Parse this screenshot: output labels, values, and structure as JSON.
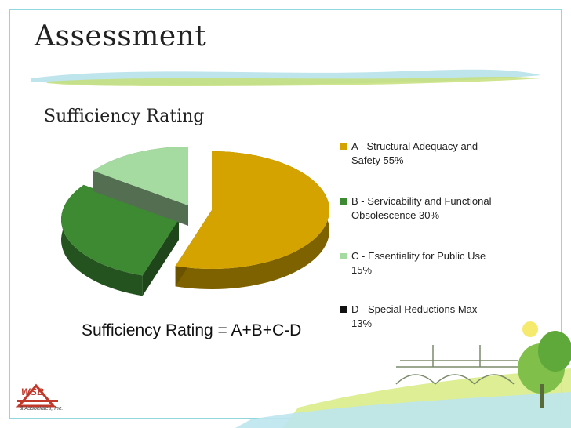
{
  "slide": {
    "title": "Assessment",
    "subtitle": "Sufficiency Rating",
    "formula": "Sufficiency Rating = A+B+C-D",
    "logo": {
      "text": "WSB",
      "tagline": "& Associates, Inc."
    }
  },
  "chart_data": {
    "type": "pie",
    "title": "",
    "series": [
      {
        "name": "A - Structural Adequacy and Safety 55%",
        "value": 55,
        "color": "#d4a300"
      },
      {
        "name": "B - Servicability and Functional Obsolescence 30%",
        "value": 30,
        "color": "#3e8a33"
      },
      {
        "name": "C - Essentiality for Public Use 15%",
        "value": 15,
        "color": "#a5dba1"
      },
      {
        "name": "D - Special Reductions Max 13%",
        "value": 13,
        "color": "#111111"
      }
    ],
    "legend_position": "right"
  }
}
